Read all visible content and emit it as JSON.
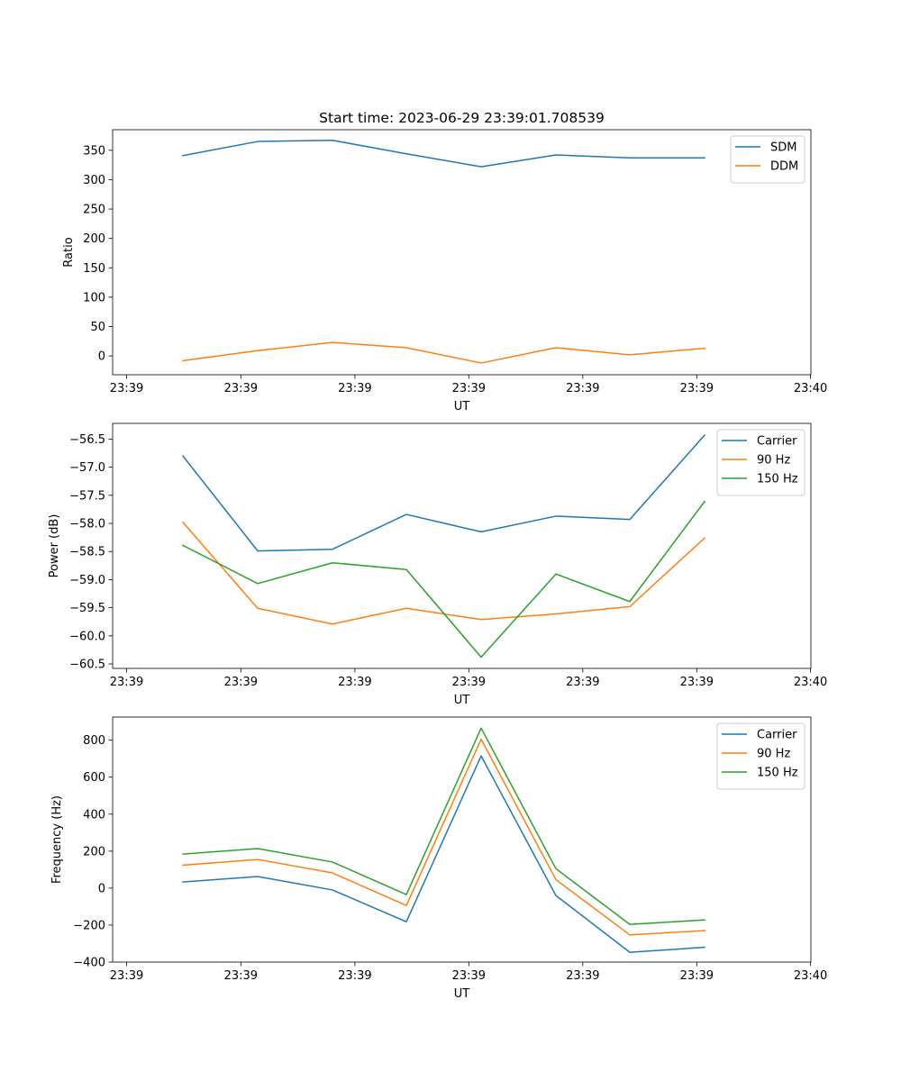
{
  "title": "Start time: 2023-06-29 23:39:01.708539",
  "chart_data": [
    {
      "type": "line",
      "xlabel": "UT",
      "ylabel": "Ratio",
      "x_ticks": [
        "23:39",
        "23:39",
        "23:39",
        "23:39",
        "23:39",
        "23:39",
        "23:40"
      ],
      "ylim": [
        -32,
        385
      ],
      "yticks": [
        0,
        50,
        100,
        150,
        200,
        250,
        300,
        350
      ],
      "ytick_labels": [
        "0",
        "50",
        "100",
        "150",
        "200",
        "250",
        "300",
        "350"
      ],
      "legend_position": "upper-right",
      "grid": false,
      "series": [
        {
          "name": "SDM",
          "color": "#1f77b4",
          "values": [
            341,
            365,
            367,
            344,
            322,
            342,
            337,
            337
          ]
        },
        {
          "name": "DDM",
          "color": "#ff7f0e",
          "values": [
            -8,
            9,
            23,
            14,
            -12,
            14,
            2,
            13
          ]
        }
      ]
    },
    {
      "type": "line",
      "xlabel": "UT",
      "ylabel": "Power (dB)",
      "x_ticks": [
        "23:39",
        "23:39",
        "23:39",
        "23:39",
        "23:39",
        "23:39",
        "23:40"
      ],
      "ylim": [
        -60.58,
        -56.22
      ],
      "yticks": [
        -60.5,
        -60.0,
        -59.5,
        -59.0,
        -58.5,
        -58.0,
        -57.5,
        -57.0,
        -56.5
      ],
      "ytick_labels": [
        "−60.5",
        "−60.0",
        "−59.5",
        "−59.0",
        "−58.5",
        "−58.0",
        "−57.5",
        "−57.0",
        "−56.5"
      ],
      "legend_position": "upper-right",
      "grid": false,
      "series": [
        {
          "name": "Carrier",
          "color": "#1f77b4",
          "values": [
            -56.8,
            -58.49,
            -58.46,
            -57.84,
            -58.15,
            -57.87,
            -57.93,
            -56.43
          ]
        },
        {
          "name": "90 Hz",
          "color": "#ff7f0e",
          "values": [
            -57.98,
            -59.51,
            -59.79,
            -59.51,
            -59.71,
            -59.61,
            -59.48,
            -58.26
          ]
        },
        {
          "name": "150 Hz",
          "color": "#2ca02c",
          "values": [
            -58.39,
            -59.07,
            -58.7,
            -58.82,
            -60.38,
            -58.9,
            -59.39,
            -57.61
          ]
        }
      ]
    },
    {
      "type": "line",
      "xlabel": "UT",
      "ylabel": "Frequency (Hz)",
      "x_ticks": [
        "23:39",
        "23:39",
        "23:39",
        "23:39",
        "23:39",
        "23:39",
        "23:40"
      ],
      "ylim": [
        -400,
        925
      ],
      "yticks": [
        -400,
        -200,
        0,
        200,
        400,
        600,
        800
      ],
      "ytick_labels": [
        "−400",
        "−200",
        "0",
        "200",
        "400",
        "600",
        "800"
      ],
      "legend_position": "upper-right",
      "grid": false,
      "series": [
        {
          "name": "Carrier",
          "color": "#1f77b4",
          "values": [
            33,
            63,
            -10,
            -182,
            715,
            -40,
            -347,
            -320
          ]
        },
        {
          "name": "90 Hz",
          "color": "#ff7f0e",
          "values": [
            124,
            155,
            82,
            -94,
            805,
            46,
            -253,
            -230
          ]
        },
        {
          "name": "150 Hz",
          "color": "#2ca02c",
          "values": [
            184,
            214,
            141,
            -35,
            865,
            105,
            -196,
            -172
          ]
        }
      ]
    }
  ]
}
